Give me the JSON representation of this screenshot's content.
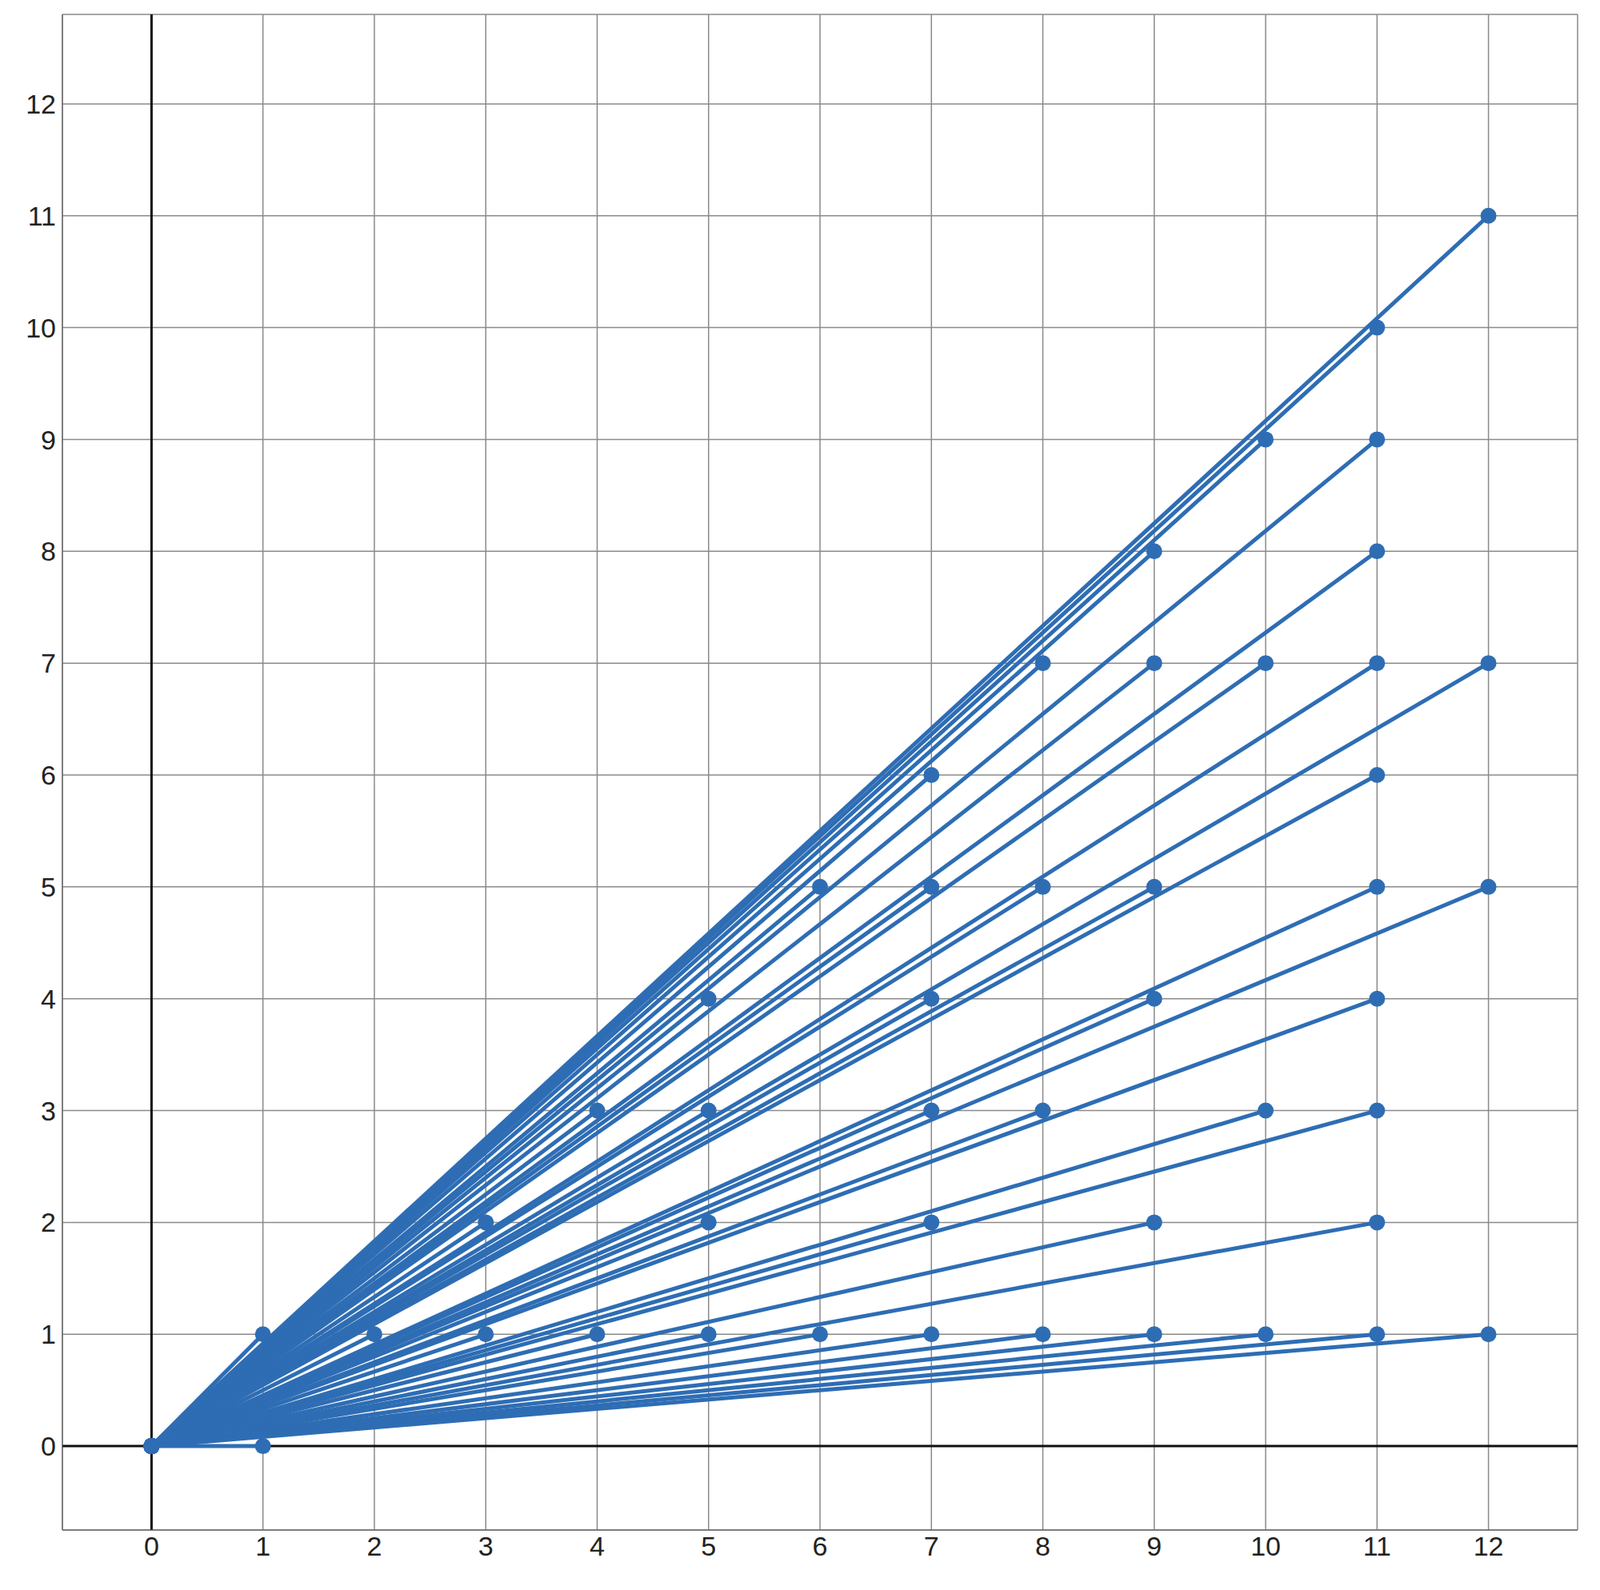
{
  "chart_data": {
    "type": "line",
    "color": "#2e6db4",
    "marker": "circle",
    "grid": true,
    "xlim": [
      -0.8,
      12.8
    ],
    "ylim": [
      -0.75,
      12.8
    ],
    "xticks": [
      0,
      1,
      2,
      3,
      4,
      5,
      6,
      7,
      8,
      9,
      10,
      11,
      12
    ],
    "yticks": [
      0,
      1,
      2,
      3,
      4,
      5,
      6,
      7,
      8,
      9,
      10,
      11,
      12
    ],
    "series": [
      {
        "x": [
          0,
          1
        ],
        "values": [
          0,
          0
        ]
      },
      {
        "x": [
          0,
          1
        ],
        "values": [
          0,
          1
        ]
      },
      {
        "x": [
          0,
          2
        ],
        "values": [
          0,
          1
        ]
      },
      {
        "x": [
          0,
          3
        ],
        "values": [
          0,
          1
        ]
      },
      {
        "x": [
          0,
          3
        ],
        "values": [
          0,
          2
        ]
      },
      {
        "x": [
          0,
          4
        ],
        "values": [
          0,
          1
        ]
      },
      {
        "x": [
          0,
          4
        ],
        "values": [
          0,
          3
        ]
      },
      {
        "x": [
          0,
          5
        ],
        "values": [
          0,
          1
        ]
      },
      {
        "x": [
          0,
          5
        ],
        "values": [
          0,
          2
        ]
      },
      {
        "x": [
          0,
          5
        ],
        "values": [
          0,
          3
        ]
      },
      {
        "x": [
          0,
          5
        ],
        "values": [
          0,
          4
        ]
      },
      {
        "x": [
          0,
          6
        ],
        "values": [
          0,
          1
        ]
      },
      {
        "x": [
          0,
          6
        ],
        "values": [
          0,
          5
        ]
      },
      {
        "x": [
          0,
          7
        ],
        "values": [
          0,
          1
        ]
      },
      {
        "x": [
          0,
          7
        ],
        "values": [
          0,
          2
        ]
      },
      {
        "x": [
          0,
          7
        ],
        "values": [
          0,
          3
        ]
      },
      {
        "x": [
          0,
          7
        ],
        "values": [
          0,
          4
        ]
      },
      {
        "x": [
          0,
          7
        ],
        "values": [
          0,
          5
        ]
      },
      {
        "x": [
          0,
          7
        ],
        "values": [
          0,
          6
        ]
      },
      {
        "x": [
          0,
          8
        ],
        "values": [
          0,
          1
        ]
      },
      {
        "x": [
          0,
          8
        ],
        "values": [
          0,
          3
        ]
      },
      {
        "x": [
          0,
          8
        ],
        "values": [
          0,
          5
        ]
      },
      {
        "x": [
          0,
          8
        ],
        "values": [
          0,
          7
        ]
      },
      {
        "x": [
          0,
          9
        ],
        "values": [
          0,
          1
        ]
      },
      {
        "x": [
          0,
          9
        ],
        "values": [
          0,
          2
        ]
      },
      {
        "x": [
          0,
          9
        ],
        "values": [
          0,
          4
        ]
      },
      {
        "x": [
          0,
          9
        ],
        "values": [
          0,
          5
        ]
      },
      {
        "x": [
          0,
          9
        ],
        "values": [
          0,
          7
        ]
      },
      {
        "x": [
          0,
          9
        ],
        "values": [
          0,
          8
        ]
      },
      {
        "x": [
          0,
          10
        ],
        "values": [
          0,
          1
        ]
      },
      {
        "x": [
          0,
          10
        ],
        "values": [
          0,
          3
        ]
      },
      {
        "x": [
          0,
          10
        ],
        "values": [
          0,
          7
        ]
      },
      {
        "x": [
          0,
          10
        ],
        "values": [
          0,
          9
        ]
      },
      {
        "x": [
          0,
          11
        ],
        "values": [
          0,
          1
        ]
      },
      {
        "x": [
          0,
          11
        ],
        "values": [
          0,
          2
        ]
      },
      {
        "x": [
          0,
          11
        ],
        "values": [
          0,
          3
        ]
      },
      {
        "x": [
          0,
          11
        ],
        "values": [
          0,
          4
        ]
      },
      {
        "x": [
          0,
          11
        ],
        "values": [
          0,
          5
        ]
      },
      {
        "x": [
          0,
          11
        ],
        "values": [
          0,
          6
        ]
      },
      {
        "x": [
          0,
          11
        ],
        "values": [
          0,
          7
        ]
      },
      {
        "x": [
          0,
          11
        ],
        "values": [
          0,
          8
        ]
      },
      {
        "x": [
          0,
          11
        ],
        "values": [
          0,
          9
        ]
      },
      {
        "x": [
          0,
          11
        ],
        "values": [
          0,
          10
        ]
      },
      {
        "x": [
          0,
          12
        ],
        "values": [
          0,
          1
        ]
      },
      {
        "x": [
          0,
          12
        ],
        "values": [
          0,
          5
        ]
      },
      {
        "x": [
          0,
          12
        ],
        "values": [
          0,
          7
        ]
      },
      {
        "x": [
          0,
          12
        ],
        "values": [
          0,
          11
        ]
      }
    ]
  }
}
